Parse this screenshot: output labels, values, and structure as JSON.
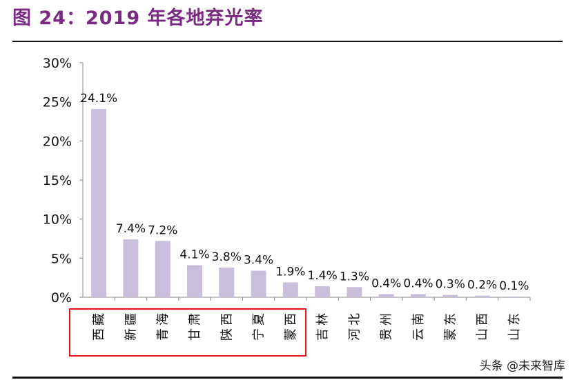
{
  "title": "图 24：2019 年各地弃光率",
  "watermark": "头条 @未来智库",
  "chart_data": {
    "type": "bar",
    "categories": [
      "西藏",
      "新疆",
      "青海",
      "甘肃",
      "陕西",
      "宁夏",
      "蒙西",
      "吉林",
      "河北",
      "贵州",
      "云南",
      "蒙东",
      "山西",
      "山东"
    ],
    "values": [
      24.1,
      7.4,
      7.2,
      4.1,
      3.8,
      3.4,
      1.9,
      1.4,
      1.3,
      0.4,
      0.4,
      0.3,
      0.2,
      0.1
    ],
    "data_labels": [
      "24.1%",
      "7.4%",
      "7.2%",
      "4.1%",
      "3.8%",
      "3.4%",
      "1.9%",
      "1.4%",
      "1.3%",
      "0.4%",
      "0.4%",
      "0.3%",
      "0.2%",
      "0.1%"
    ],
    "yticks": [
      "0%",
      "5%",
      "10%",
      "15%",
      "20%",
      "25%",
      "30%"
    ],
    "ylim": [
      0,
      30
    ],
    "bar_color": "#c9bfdd",
    "highlight_color": "#e8141b",
    "highlighted_categories": [
      "西藏",
      "新疆",
      "青海",
      "甘肃",
      "陕西",
      "宁夏",
      "蒙西"
    ],
    "grid": false
  }
}
